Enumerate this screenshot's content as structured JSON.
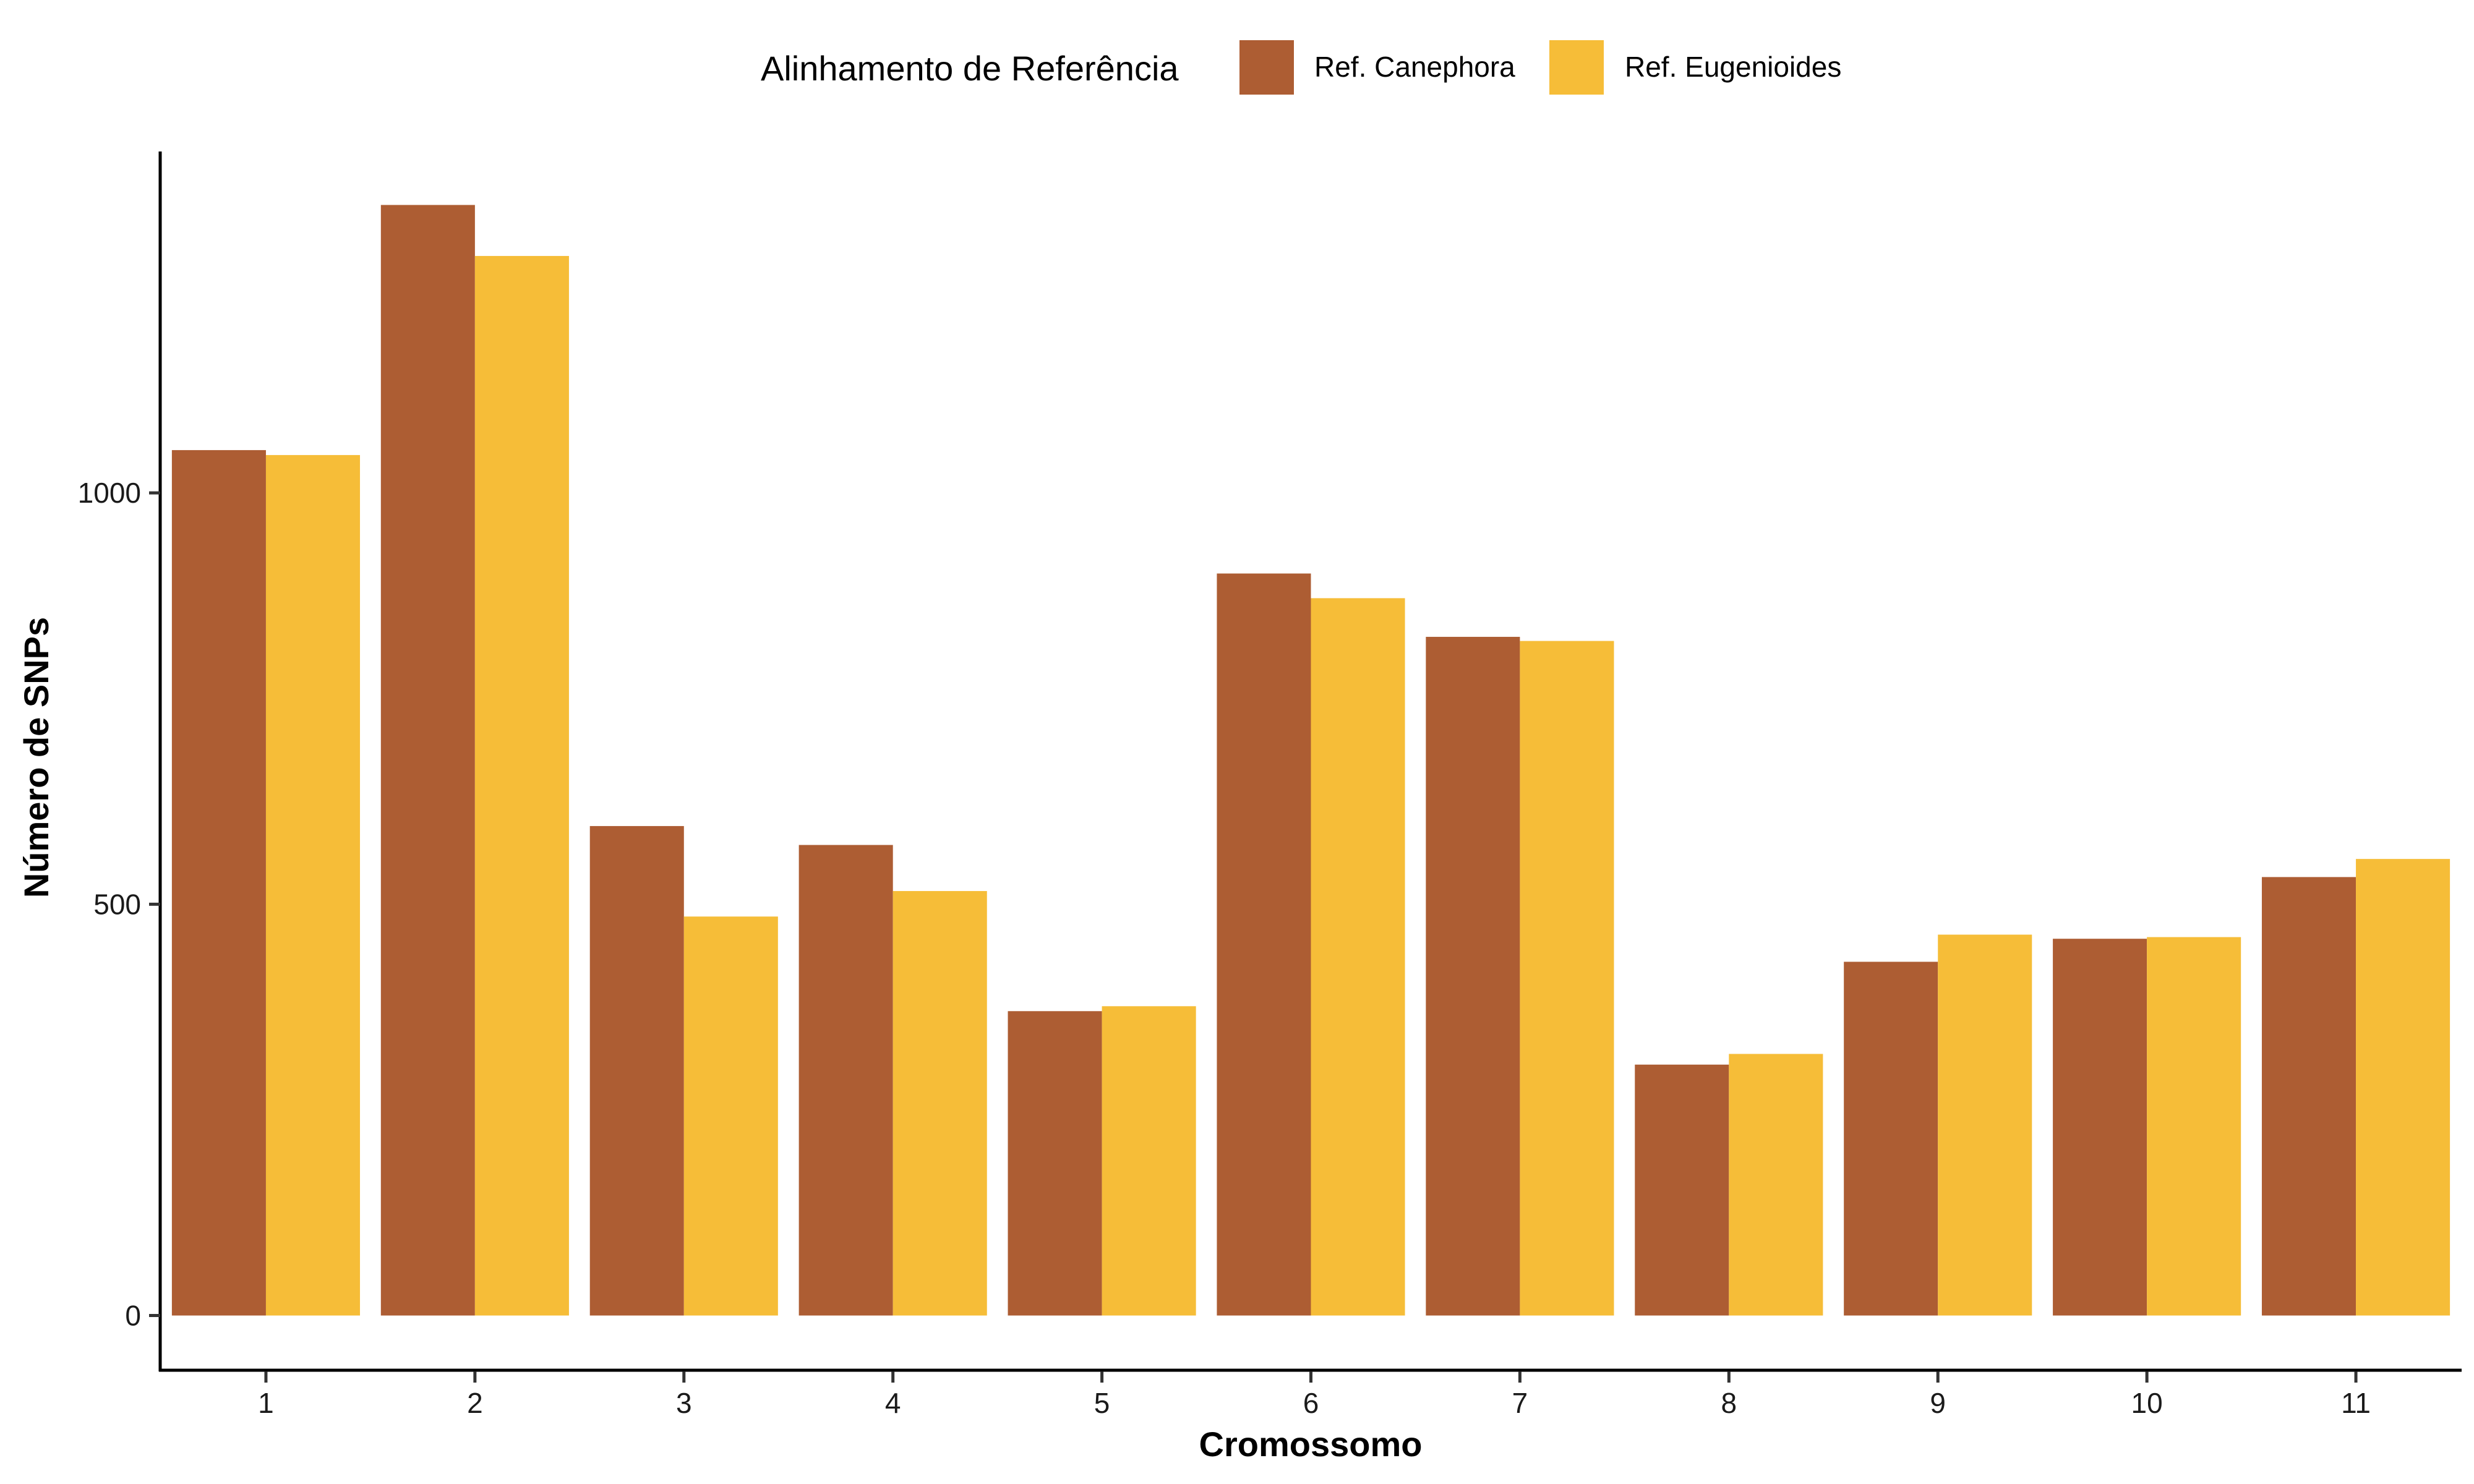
{
  "chart_data": {
    "type": "bar",
    "xlabel": "Cromossomo",
    "ylabel": "Número de SNPs",
    "categories": [
      "1",
      "2",
      "3",
      "4",
      "5",
      "6",
      "7",
      "8",
      "9",
      "10",
      "11"
    ],
    "series": [
      {
        "name": "Ref. Canephora",
        "color": "#AD5D33",
        "values": [
          1052,
          1350,
          595,
          572,
          370,
          902,
          825,
          305,
          430,
          458,
          533
        ]
      },
      {
        "name": "Ref. Eugenioides",
        "color": "#F6BD38",
        "values": [
          1046,
          1288,
          485,
          516,
          376,
          872,
          820,
          318,
          463,
          460,
          555
        ]
      }
    ],
    "ylim": [
      -65,
      1415
    ],
    "yticks": [
      0,
      500,
      1000
    ],
    "ytick_labels": [
      "0",
      "500",
      "1000"
    ],
    "legend": {
      "title": "Alinhamento de Referência",
      "position": "top"
    },
    "grid": false
  }
}
